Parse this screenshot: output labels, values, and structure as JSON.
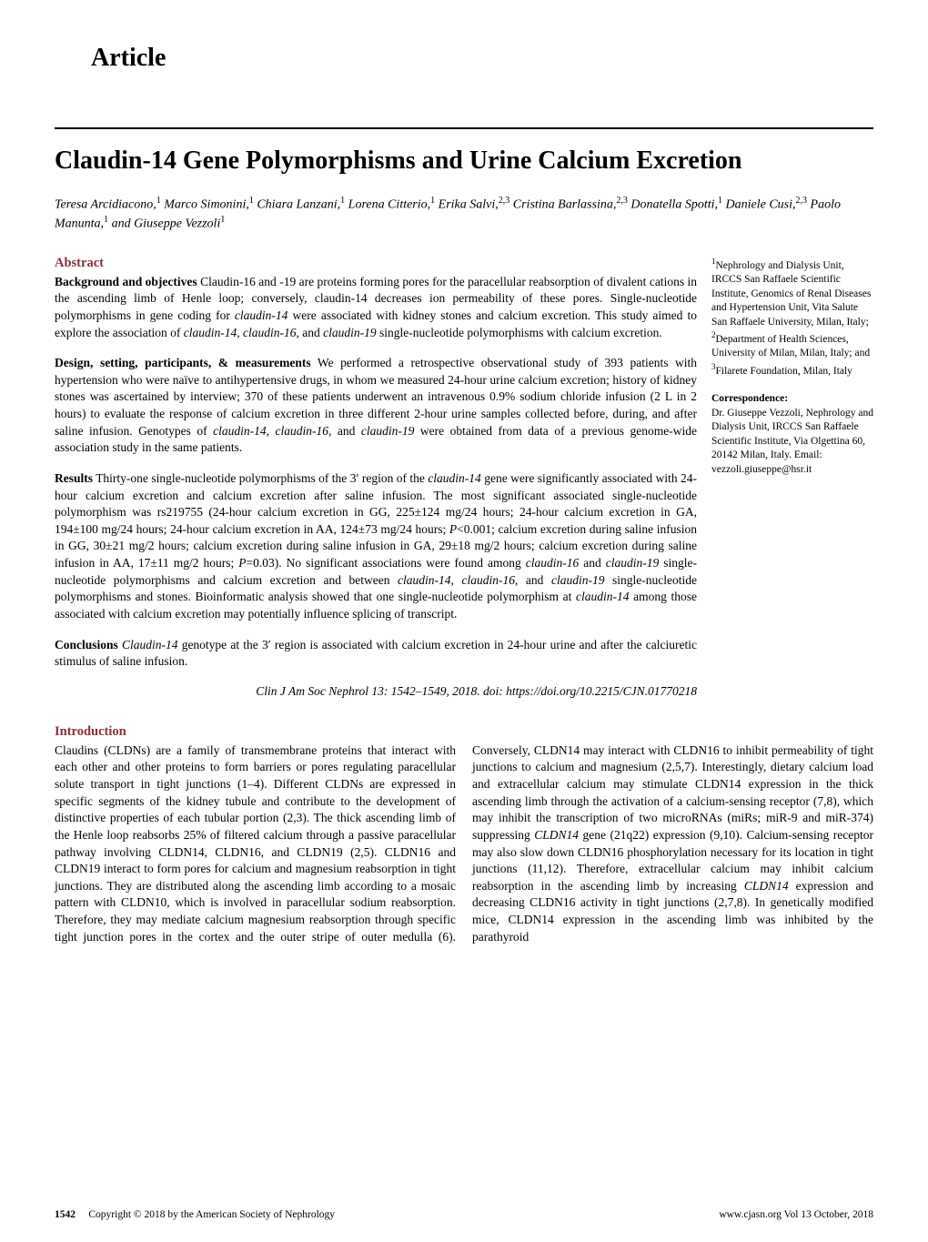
{
  "section_label": "Article",
  "title": "Claudin-14 Gene Polymorphisms and Urine Calcium Excretion",
  "authors_html": "Teresa Arcidiacono,<sup>1</sup> Marco Simonini,<sup>1</sup> Chiara Lanzani,<sup>1</sup> Lorena Citterio,<sup>1</sup> Erika Salvi,<sup>2,3</sup> Cristina Barlassina,<sup>2,3</sup> Donatella Spotti,<sup>1</sup> Daniele Cusi,<sup>2,3</sup> Paolo Manunta,<sup>1</sup> and Giuseppe Vezzoli<sup>1</sup>",
  "abstract": {
    "heading": "Abstract",
    "background": {
      "lead": "Background and objectives",
      "text": " Claudin-16 and -19 are proteins forming pores for the paracellular reabsorption of divalent cations in the ascending limb of Henle loop; conversely, claudin-14 decreases ion permeability of these pores. Single-nucleotide polymorphisms in gene coding for <i>claudin-14</i> were associated with kidney stones and calcium excretion. This study aimed to explore the association of <i>claudin-14</i>, <i>claudin-16</i>, and <i>claudin-19</i> single-nucleotide polymorphisms with calcium excretion."
    },
    "design": {
      "lead": "Design, setting, participants, & measurements",
      "text": " We performed a retrospective observational study of 393 patients with hypertension who were naïve to antihypertensive drugs, in whom we measured 24-hour urine calcium excretion; history of kidney stones was ascertained by interview; 370 of these patients underwent an intravenous 0.9% sodium chloride infusion (2 L in 2 hours) to evaluate the response of calcium excretion in three different 2-hour urine samples collected before, during, and after saline infusion. Genotypes of <i>claudin-14</i>, <i>claudin-16</i>, and <i>claudin-19</i> were obtained from data of a previous genome-wide association study in the same patients."
    },
    "results": {
      "lead": "Results",
      "text": " Thirty-one single-nucleotide polymorphisms of the 3′ region of the <i>claudin-14</i> gene were significantly associated with 24-hour calcium excretion and calcium excretion after saline infusion. The most significant associated single-nucleotide polymorphism was rs219755 (24-hour calcium excretion in GG, 225±124 mg/24 hours; 24-hour calcium excretion in GA, 194±100 mg/24 hours; 24-hour calcium excretion in AA, 124±73 mg/24 hours; <i>P</i><0.001; calcium excretion during saline infusion in GG, 30±21 mg/2 hours; calcium excretion during saline infusion in GA, 29±18 mg/2 hours; calcium excretion during saline infusion in AA, 17±11 mg/2 hours; <i>P</i>=0.03). No significant associations were found among <i>claudin-16</i> and <i>claudin-19</i> single-nucleotide polymorphisms and calcium excretion and between <i>claudin-14</i>, <i>claudin-16</i>, and <i>claudin-19</i> single-nucleotide polymorphisms and stones. Bioinformatic analysis showed that one single-nucleotide polymorphism at <i>claudin-14</i> among those associated with calcium excretion may potentially influence splicing of transcript."
    },
    "conclusions": {
      "lead": "Conclusions",
      "text": " <i>Claudin-14</i> genotype at the 3′ region is associated with calcium excretion in 24-hour urine and after the calciuretic stimulus of saline infusion."
    },
    "citation": "Clin J Am Soc Nephrol 13: 1542–1549, 2018. doi: https://doi.org/10.2215/CJN.01770218"
  },
  "affiliations_html": "<sup>1</sup>Nephrology and Dialysis Unit, IRCCS San Raffaele Scientific Institute, Genomics of Renal Diseases and Hypertension Unit, Vita Salute San Raffaele University, Milan, Italy; <sup>2</sup>Department of Health Sciences, University of Milan, Milan, Italy; and <sup>3</sup>Filarete Foundation, Milan, Italy",
  "correspondence": {
    "heading": "Correspondence:",
    "text": "Dr. Giuseppe Vezzoli, Nephrology and Dialysis Unit, IRCCS San Raffaele Scientific Institute, Via Olgettina 60, 20142 Milan, Italy. Email: vezzoli.giuseppe@hsr.it"
  },
  "introduction": {
    "heading": "Introduction",
    "body_html": "Claudins (CLDNs) are a family of transmembrane proteins that interact with each other and other proteins to form barriers or pores regulating paracellular solute transport in tight junctions (1–4). Different CLDNs are expressed in specific segments of the kidney tubule and contribute to the development of distinctive properties of each tubular portion (2,3). The thick ascending limb of the Henle loop reabsorbs 25% of filtered calcium through a passive paracellular pathway involving CLDN14, CLDN16, and CLDN19 (2,5). CLDN16 and CLDN19 interact to form pores for calcium and magnesium reabsorption in tight junctions. They are distributed along the ascending limb according to a mosaic pattern with CLDN10, which is involved in paracellular sodium reabsorption. Therefore, they may mediate calcium magnesium reabsorption through specific tight junction pores in the cortex and the outer stripe of outer medulla (6). Conversely, CLDN14 may interact with CLDN16 to inhibit permeability of tight junctions to calcium and magnesium (2,5,7). Interestingly, dietary calcium load and extracellular calcium may stimulate CLDN14 expression in the thick ascending limb through the activation of a calcium-sensing receptor (7,8), which may inhibit the transcription of two microRNAs (miRs; miR-9 and miR-374) suppressing <i>CLDN14</i> gene (21q22) expression (9,10). Calcium-sensing receptor may also slow down CLDN16 phosphorylation necessary for its location in tight junctions (11,12). Therefore, extracellular calcium may inhibit calcium reabsorption in the ascending limb by increasing <i>CLDN14</i> expression and decreasing CLDN16 activity in tight junctions (2,7,8). In genetically modified mice, CLDN14 expression in the ascending limb was inhibited by the parathyroid"
  },
  "footer": {
    "page": "1542",
    "copyright": "Copyright © 2018 by the American Society of Nephrology",
    "journal": "www.cjasn.org Vol 13 October, 2018"
  },
  "colors": {
    "heading": "#8b2e3e",
    "text": "#000000",
    "background": "#ffffff"
  }
}
